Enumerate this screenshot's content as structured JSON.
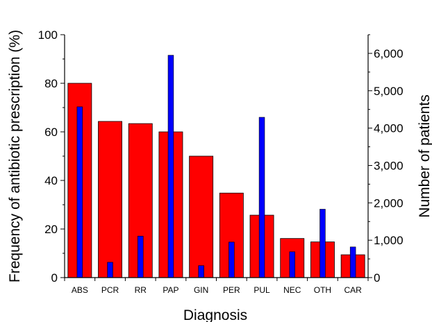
{
  "chart_data": {
    "type": "bar",
    "title": "",
    "xlabel": "Diagnosis",
    "ylabel": "Frequency of antibiotic prescription (%)",
    "y2label": "Number of patients",
    "categories": [
      "ABS",
      "PCR",
      "RR",
      "PAP",
      "GIN",
      "PER",
      "PUL",
      "NEC",
      "OTH",
      "CAR"
    ],
    "ylim": [
      0,
      100
    ],
    "y2lim": [
      0,
      6500
    ],
    "yticks": [
      0,
      20,
      40,
      60,
      80,
      100
    ],
    "y2ticks": [
      0,
      1000,
      2000,
      3000,
      4000,
      5000,
      6000
    ],
    "y2tick_labels": [
      "0",
      "1,000",
      "2,000",
      "3,000",
      "4,000",
      "5,000",
      "6,000"
    ],
    "legend": "none",
    "grid": false,
    "series": [
      {
        "axis": "left",
        "color": "#ff0000",
        "values": [
          80,
          64.3,
          63.4,
          60,
          50,
          34.8,
          25.7,
          16.1,
          14.7,
          9.4
        ]
      },
      {
        "axis": "right",
        "color": "#0000ff",
        "values": [
          4570,
          410,
          1110,
          5950,
          320,
          950,
          4290,
          690,
          1830,
          820
        ]
      }
    ]
  }
}
